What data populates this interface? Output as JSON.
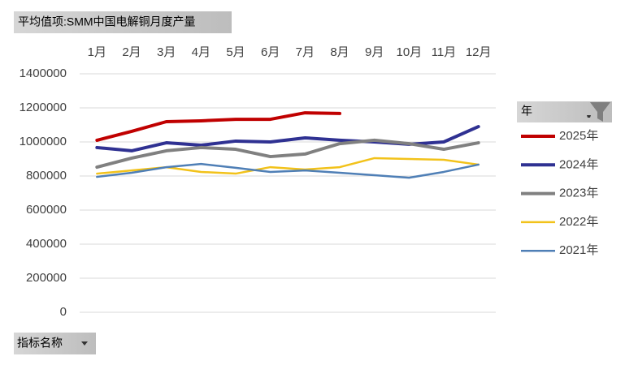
{
  "chart_data": {
    "type": "line",
    "title": "平均值项:SMM中国电解铜月度产量",
    "filter_button": "指标名称",
    "legend_title": "年",
    "legend_position": "right",
    "categories": [
      "1月",
      "2月",
      "3月",
      "4月",
      "5月",
      "6月",
      "7月",
      "8月",
      "9月",
      "10月",
      "11月",
      "12月"
    ],
    "ylim": [
      0,
      1400000
    ],
    "yticks": [
      0,
      200000,
      400000,
      600000,
      800000,
      1000000,
      1200000,
      1400000
    ],
    "grid": true,
    "series": [
      {
        "name": "2025年",
        "color": "#c00000",
        "line_width": 4,
        "values": [
          1010000,
          1062000,
          1119000,
          1124000,
          1133000,
          1133000,
          1171000,
          1167000,
          null,
          null,
          null,
          null
        ]
      },
      {
        "name": "2024年",
        "color": "#2f3192",
        "line_width": 4,
        "values": [
          967000,
          948000,
          995000,
          981000,
          1005000,
          1000000,
          1024000,
          1010000,
          1000000,
          986000,
          1000000,
          1090000
        ]
      },
      {
        "name": "2023年",
        "color": "#808080",
        "line_width": 4,
        "values": [
          852000,
          905000,
          948000,
          967000,
          957000,
          914000,
          929000,
          990000,
          1010000,
          990000,
          957000,
          995000
        ]
      },
      {
        "name": "2022年",
        "color": "#f2c21a",
        "line_width": 2.5,
        "values": [
          814000,
          833000,
          852000,
          824000,
          814000,
          852000,
          838000,
          852000,
          905000,
          900000,
          895000,
          867000
        ]
      },
      {
        "name": "2021年",
        "color": "#4f7fb6",
        "line_width": 2.5,
        "values": [
          795000,
          819000,
          852000,
          871000,
          848000,
          824000,
          833000,
          819000,
          805000,
          790000,
          824000,
          867000
        ]
      }
    ]
  }
}
